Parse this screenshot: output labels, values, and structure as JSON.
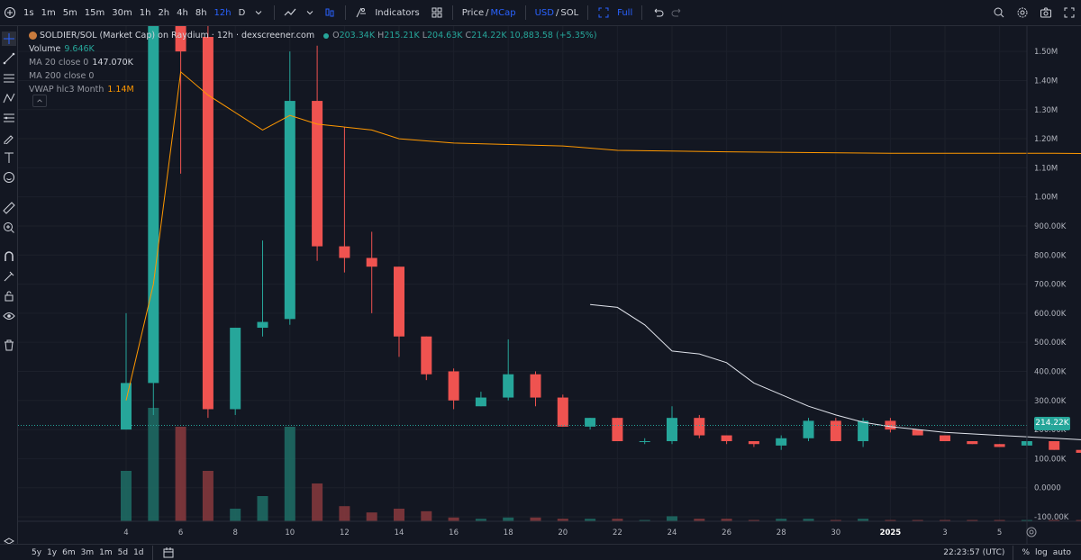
{
  "toolbar": {
    "intervals": [
      "1s",
      "1m",
      "5m",
      "15m",
      "30m",
      "1h",
      "2h",
      "4h",
      "8h",
      "12h",
      "D"
    ],
    "active_interval": "12h",
    "indicators_label": "Indicators",
    "price_label": "Price",
    "slash1": "/",
    "mcap_label": "MCap",
    "usd_label": "USD",
    "slash2": "/",
    "sol_label": "SOL",
    "full_label": "Full"
  },
  "legend": {
    "title": "SOLDIER/SOL (Market Cap) on Raydium · 12h · dexscreener.com",
    "ohlc": {
      "o_label": "O",
      "o": "203.34K",
      "h_label": "H",
      "h": "215.21K",
      "l_label": "L",
      "l": "204.63K",
      "c_label": "C",
      "c": "214.22K",
      "change": "10,883.58 (+5.35%)"
    },
    "volume_label": "Volume",
    "volume_value": "9.646K",
    "ma20_label": "MA 20 close 0",
    "ma20_value": "147.070K",
    "ma200_label": "MA 200 close 0",
    "vwap_label": "VWAP hlc3 Month",
    "vwap_value": "1.14M"
  },
  "price_tag": "214.22K",
  "colors": {
    "up": "#26a69a",
    "down": "#ef5350",
    "vwap": "#ff9800",
    "ma": "#e0e3eb",
    "background": "#131722"
  },
  "chart_data": {
    "type": "candlestick",
    "y_axis_labels": [
      "1.50M",
      "1.40M",
      "1.30M",
      "1.20M",
      "1.10M",
      "1.00M",
      "900.00K",
      "800.00K",
      "700.00K",
      "600.00K",
      "500.00K",
      "400.00K",
      "300.00K",
      "200.00K",
      "100.00K",
      "0.0000",
      "-100.00K"
    ],
    "x_axis_labels": [
      "4",
      "6",
      "8",
      "10",
      "12",
      "14",
      "16",
      "18",
      "20",
      "22",
      "24",
      "26",
      "28",
      "30",
      "2025",
      "3",
      "5"
    ],
    "ylim": [
      -100000,
      1550000
    ],
    "candles": [
      {
        "x": 1.0,
        "o": 200000,
        "h": 600000,
        "l": 200000,
        "c": 360000,
        "v": 40
      },
      {
        "x": 1.5,
        "o": 360000,
        "h": 1600000,
        "l": 250000,
        "c": 1600000,
        "v": 90
      },
      {
        "x": 2.0,
        "o": 1600000,
        "h": 1600000,
        "l": 1080000,
        "c": 1500000,
        "v": 75
      },
      {
        "x": 2.5,
        "o": 1550000,
        "h": 1600000,
        "l": 240000,
        "c": 270000,
        "v": 40
      },
      {
        "x": 3.0,
        "o": 270000,
        "h": 550000,
        "l": 250000,
        "c": 550000,
        "v": 10
      },
      {
        "x": 3.5,
        "o": 550000,
        "h": 850000,
        "l": 520000,
        "c": 570000,
        "v": 20
      },
      {
        "x": 4.0,
        "o": 580000,
        "h": 1500000,
        "l": 560000,
        "c": 1330000,
        "v": 75
      },
      {
        "x": 4.5,
        "o": 1330000,
        "h": 1520000,
        "l": 780000,
        "c": 830000,
        "v": 30
      },
      {
        "x": 5.0,
        "o": 830000,
        "h": 1240000,
        "l": 740000,
        "c": 790000,
        "v": 12
      },
      {
        "x": 5.5,
        "o": 790000,
        "h": 880000,
        "l": 600000,
        "c": 760000,
        "v": 7
      },
      {
        "x": 6.0,
        "o": 760000,
        "h": 760000,
        "l": 450000,
        "c": 520000,
        "v": 10
      },
      {
        "x": 6.5,
        "o": 520000,
        "h": 520000,
        "l": 370000,
        "c": 390000,
        "v": 8
      },
      {
        "x": 7.0,
        "o": 400000,
        "h": 410000,
        "l": 270000,
        "c": 300000,
        "v": 3
      },
      {
        "x": 7.5,
        "o": 280000,
        "h": 330000,
        "l": 280000,
        "c": 310000,
        "v": 2
      },
      {
        "x": 8.0,
        "o": 310000,
        "h": 510000,
        "l": 300000,
        "c": 390000,
        "v": 3
      },
      {
        "x": 8.5,
        "o": 390000,
        "h": 400000,
        "l": 280000,
        "c": 310000,
        "v": 3
      },
      {
        "x": 9.0,
        "o": 310000,
        "h": 320000,
        "l": 210000,
        "c": 210000,
        "v": 2
      },
      {
        "x": 9.5,
        "o": 210000,
        "h": 240000,
        "l": 200000,
        "c": 240000,
        "v": 2
      },
      {
        "x": 10.0,
        "o": 240000,
        "h": 240000,
        "l": 160000,
        "c": 160000,
        "v": 2
      },
      {
        "x": 10.5,
        "o": 160000,
        "h": 170000,
        "l": 150000,
        "c": 160000,
        "v": 1
      },
      {
        "x": 11.0,
        "o": 160000,
        "h": 280000,
        "l": 150000,
        "c": 240000,
        "v": 4
      },
      {
        "x": 11.5,
        "o": 240000,
        "h": 250000,
        "l": 170000,
        "c": 180000,
        "v": 2
      },
      {
        "x": 12.0,
        "o": 180000,
        "h": 180000,
        "l": 150000,
        "c": 160000,
        "v": 2
      },
      {
        "x": 12.5,
        "o": 160000,
        "h": 160000,
        "l": 140000,
        "c": 150000,
        "v": 1
      },
      {
        "x": 13.0,
        "o": 145000,
        "h": 180000,
        "l": 130000,
        "c": 170000,
        "v": 2
      },
      {
        "x": 13.5,
        "o": 170000,
        "h": 240000,
        "l": 160000,
        "c": 230000,
        "v": 2
      },
      {
        "x": 14.0,
        "o": 230000,
        "h": 240000,
        "l": 160000,
        "c": 160000,
        "v": 1
      },
      {
        "x": 14.5,
        "o": 160000,
        "h": 240000,
        "l": 140000,
        "c": 230000,
        "v": 2
      },
      {
        "x": 15.0,
        "o": 230000,
        "h": 240000,
        "l": 190000,
        "c": 200000,
        "v": 1
      },
      {
        "x": 15.5,
        "o": 200000,
        "h": 200000,
        "l": 180000,
        "c": 180000,
        "v": 1
      },
      {
        "x": 16.0,
        "o": 180000,
        "h": 180000,
        "l": 160000,
        "c": 160000,
        "v": 1
      },
      {
        "x": 16.5,
        "o": 160000,
        "h": 160000,
        "l": 150000,
        "c": 150000,
        "v": 1
      },
      {
        "x": 17.0,
        "o": 150000,
        "h": 150000,
        "l": 140000,
        "c": 140000,
        "v": 1
      },
      {
        "x": 17.5,
        "o": 145000,
        "h": 170000,
        "l": 140000,
        "c": 160000,
        "v": 1
      },
      {
        "x": 18.0,
        "o": 160000,
        "h": 160000,
        "l": 130000,
        "c": 130000,
        "v": 1
      },
      {
        "x": 18.5,
        "o": 130000,
        "h": 130000,
        "l": 115000,
        "c": 120000,
        "v": 1
      },
      {
        "x": 19.0,
        "o": 120000,
        "h": 125000,
        "l": 110000,
        "c": 115000,
        "v": 1
      },
      {
        "x": 19.5,
        "o": 115000,
        "h": 115000,
        "l": 95000,
        "c": 100000,
        "v": 1
      },
      {
        "x": 20.0,
        "o": 100000,
        "h": 100000,
        "l": 85000,
        "c": 90000,
        "v": 1
      },
      {
        "x": 20.5,
        "o": 90000,
        "h": 260000,
        "l": 85000,
        "c": 190000,
        "v": 2
      },
      {
        "x": 21.0,
        "o": 190000,
        "h": 240000,
        "l": 160000,
        "c": 160000,
        "v": 1
      },
      {
        "x": 21.5,
        "o": 160000,
        "h": 165000,
        "l": 145000,
        "c": 150000,
        "v": 1
      },
      {
        "x": 22.0,
        "o": 150000,
        "h": 150000,
        "l": 125000,
        "c": 130000,
        "v": 1
      },
      {
        "x": 22.5,
        "o": 130000,
        "h": 135000,
        "l": 120000,
        "c": 125000,
        "v": 1
      },
      {
        "x": 23.0,
        "o": 125000,
        "h": 130000,
        "l": 120000,
        "c": 122000,
        "v": 1
      },
      {
        "x": 23.5,
        "o": 125000,
        "h": 140000,
        "l": 120000,
        "c": 135000,
        "v": 1
      },
      {
        "x": 24.0,
        "o": 135000,
        "h": 200000,
        "l": 130000,
        "c": 185000,
        "v": 1
      },
      {
        "x": 24.5,
        "o": 185000,
        "h": 210000,
        "l": 180000,
        "c": 205000,
        "v": 1
      },
      {
        "x": 25.0,
        "o": 203340,
        "h": 215210,
        "l": 204630,
        "c": 214220,
        "v": 1
      }
    ],
    "vwap": [
      [
        1.0,
        300000
      ],
      [
        1.5,
        700000
      ],
      [
        2.0,
        1430000
      ],
      [
        2.5,
        1350000
      ],
      [
        3.0,
        1290000
      ],
      [
        3.5,
        1230000
      ],
      [
        4.0,
        1280000
      ],
      [
        4.5,
        1250000
      ],
      [
        5.0,
        1240000
      ],
      [
        5.5,
        1230000
      ],
      [
        6.0,
        1200000
      ],
      [
        7.0,
        1185000
      ],
      [
        8.0,
        1180000
      ],
      [
        9.0,
        1175000
      ],
      [
        10.0,
        1160000
      ],
      [
        12.0,
        1155000
      ],
      [
        15.0,
        1150000
      ],
      [
        18.0,
        1150000
      ],
      [
        21.0,
        1145000
      ],
      [
        25.0,
        1145000
      ]
    ],
    "ma20": [
      [
        9.5,
        630000
      ],
      [
        10.0,
        620000
      ],
      [
        10.5,
        560000
      ],
      [
        11.0,
        470000
      ],
      [
        11.5,
        460000
      ],
      [
        12.0,
        430000
      ],
      [
        12.5,
        360000
      ],
      [
        13.0,
        320000
      ],
      [
        13.5,
        280000
      ],
      [
        14.0,
        250000
      ],
      [
        14.5,
        225000
      ],
      [
        15.0,
        210000
      ],
      [
        15.5,
        200000
      ],
      [
        16.0,
        190000
      ],
      [
        17.0,
        180000
      ],
      [
        18.0,
        170000
      ],
      [
        19.0,
        160000
      ],
      [
        20.0,
        155000
      ],
      [
        21.0,
        150000
      ],
      [
        22.0,
        145000
      ],
      [
        23.0,
        140000
      ],
      [
        24.0,
        140000
      ],
      [
        25.0,
        147070
      ]
    ]
  },
  "bottombar": {
    "ranges": [
      "5y",
      "1y",
      "6m",
      "3m",
      "1m",
      "5d",
      "1d"
    ],
    "time": "22:23:57 (UTC)",
    "percent_label": "%",
    "log_label": "log",
    "auto_label": "auto"
  }
}
